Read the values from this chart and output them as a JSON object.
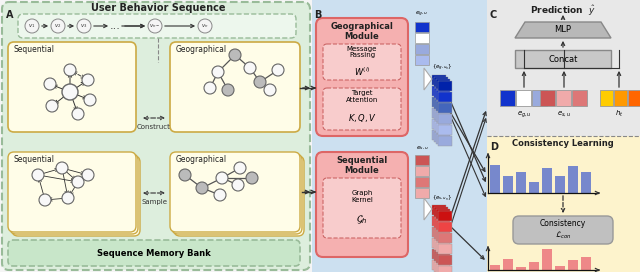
{
  "bg_color": "#f5f5f5",
  "section_A_bg": "#ddeedd",
  "section_A_border": "#99bb99",
  "section_B_bg": "#cce0f0",
  "section_C_bg": "#e8e8e8",
  "section_D_bg": "#fdf3cc",
  "yellow_box_bg": "#fffde8",
  "yellow_box_border": "#ccaa44",
  "pink_box_bg": "#f5b0b0",
  "pink_box_border": "#dd6666",
  "node_white": "#f8f8f8",
  "node_gray": "#aaaaaa",
  "node_border": "#666666",
  "blue_bar_color": "#7788cc",
  "pink_bar_color": "#ee8888",
  "embed_blue1": "#1133cc",
  "embed_blue2": "#ffffff",
  "embed_blue3": "#99aadd",
  "embed_blue4": "#aabbee",
  "embed_blue_dark": "#0022aa",
  "embed_blue_mid": "#4466bb",
  "embed_pink1": "#dd7777",
  "embed_pink2": "#f0aaaa",
  "embed_pink3": "#cc5555",
  "embed_red_dark": "#cc1111",
  "embed_red_mid": "#ee4444",
  "embed_yellow": "#ffcc00",
  "embed_orange1": "#ff9900",
  "embed_orange2": "#ff6600",
  "gray_mlp": "#b8b8b8",
  "gray_concat": "#c8c8c8",
  "gray_consist": "#c0c0c0",
  "title_A": "User Behavior Sequence",
  "title_seq_bank": "Sequence Memory Bank",
  "title_geo_module": "Geographical\nModule",
  "title_seq_module": "Sequential\nModule",
  "title_prediction": "Prediction",
  "title_consistency": "Consistency Learning",
  "label_A": "A",
  "label_B": "B",
  "label_C": "C",
  "label_D": "D",
  "label_sequential1": "Sequential",
  "label_geographical1": "Geographical",
  "label_sequential2": "Sequential",
  "label_geographical2": "Geographical",
  "label_construct": "Construct",
  "label_sample": "Sample",
  "label_msg_passing": "Message\nPassing",
  "label_W": "$W^{(l)}$",
  "label_target_attn": "Target\nAttention",
  "label_KQV": "$K, Q, V$",
  "label_graph_kernel": "Graph\nKernel",
  "label_Gh": "$\\mathcal{G}_h$",
  "label_MLP": "MLP",
  "label_Concat": "Concat",
  "label_consistency_loss": "Consistency\n$\\mathcal{L}_{con}$",
  "label_egu": "$e_{g,u}$",
  "label_esu": "$e_{s,u}$",
  "label_ht": "$h_t$",
  "label_egu_top": "$e_{g,u}$",
  "label_esu_top": "$e_{s,u}$",
  "label_set_egu": "$\\{e_{g,u_n}\\}$",
  "label_set_esu": "$\\{e_{s,u_n}\\}$",
  "label_pred_y": "$\\hat{y}$",
  "blue_bars": [
    0.75,
    0.45,
    0.55,
    0.3,
    0.65,
    0.45,
    0.7,
    0.55
  ],
  "pink_bars": [
    0.25,
    0.5,
    0.15,
    0.35,
    0.95,
    0.2,
    0.45,
    0.6
  ]
}
